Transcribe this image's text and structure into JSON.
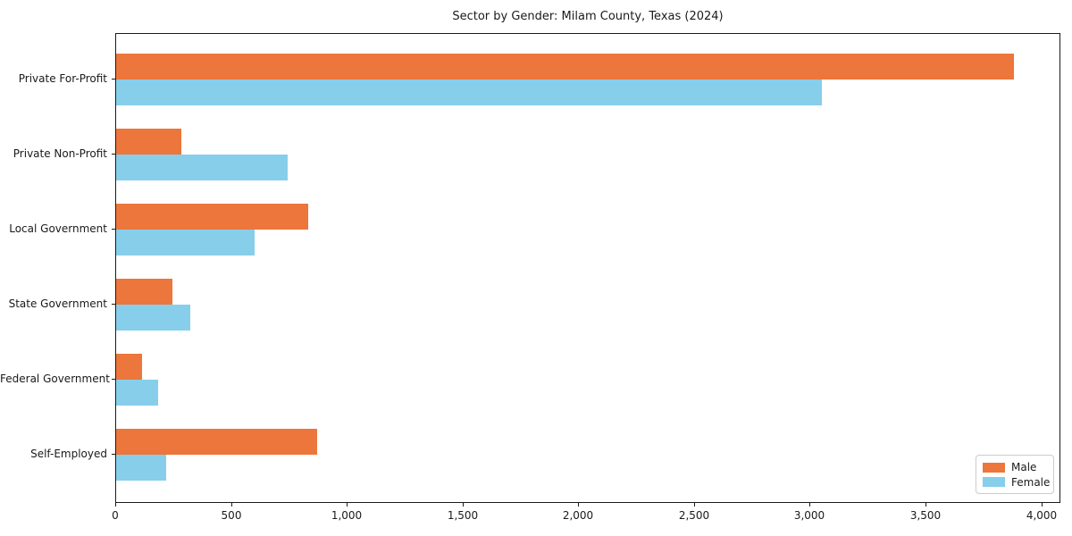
{
  "title": "Sector by Gender: Milam County, Texas (2024)",
  "chart_data": {
    "type": "bar",
    "orientation": "horizontal",
    "title": "Sector by Gender: Milam County, Texas (2024)",
    "categories": [
      "Private For-Profit",
      "Private Non-Profit",
      "Local Government",
      "State Government",
      "Federal Government",
      "Self-Employed"
    ],
    "series": [
      {
        "name": "Male",
        "color": "#EC763B",
        "values": [
          3880,
          280,
          830,
          245,
          110,
          870
        ]
      },
      {
        "name": "Female",
        "color": "#87CEEB",
        "values": [
          3050,
          740,
          600,
          320,
          180,
          215
        ]
      }
    ],
    "xlabel": "",
    "ylabel": "",
    "xlim": [
      0,
      4075
    ],
    "xticks": [
      0,
      500,
      1000,
      1500,
      2000,
      2500,
      3000,
      3500,
      4000
    ],
    "xtick_labels": [
      "0",
      "500",
      "1,000",
      "1,500",
      "2,000",
      "2,500",
      "3,000",
      "3,500",
      "4,000"
    ],
    "grid": false,
    "legend_position": "lower right"
  },
  "legend": {
    "items": [
      {
        "label": "Male",
        "color": "#EC763B"
      },
      {
        "label": "Female",
        "color": "#87CEEB"
      }
    ]
  }
}
